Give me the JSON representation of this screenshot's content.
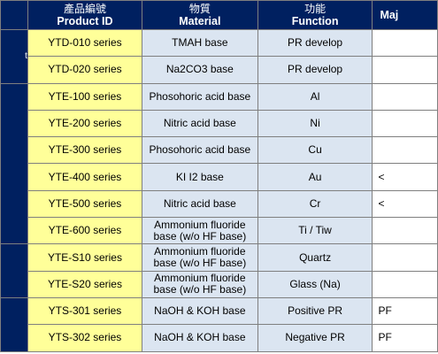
{
  "header": {
    "product_id": {
      "cn": "產品編號",
      "en": "Product ID"
    },
    "material": {
      "cn": "物質",
      "en": "Material"
    },
    "function": {
      "cn": "功能",
      "en": "Function"
    },
    "major": {
      "cn": "",
      "en": "Maj"
    }
  },
  "group_stub": "t",
  "rows": [
    {
      "product": "YTD-010 series",
      "material": "TMAH base",
      "function": "PR develop",
      "major": ""
    },
    {
      "product": "YTD-020 series",
      "material": "Na2CO3 base",
      "function": "PR develop",
      "major": ""
    },
    {
      "product": "YTE-100 series",
      "material": "Phosohoric acid base",
      "function": "Al",
      "major": ""
    },
    {
      "product": "YTE-200 series",
      "material": "Nitric acid base",
      "function": "Ni",
      "major": ""
    },
    {
      "product": "YTE-300 series",
      "material": "Phosohoric acid base",
      "function": "Cu",
      "major": ""
    },
    {
      "product": "YTE-400 series",
      "material": "KI I2 base",
      "function": "Au",
      "major": "<"
    },
    {
      "product": "YTE-500 series",
      "material": "Nitric acid base",
      "function": "Cr",
      "major": "<"
    },
    {
      "product": "YTE-600 series",
      "material": "Ammonium fluoride base (w/o HF base)",
      "function": "Ti / Tiw",
      "major": ""
    },
    {
      "product": "YTE-S10 series",
      "material": "Ammonium fluoride base (w/o HF base)",
      "function": "Quartz",
      "major": ""
    },
    {
      "product": "YTE-S20 series",
      "material": "Ammonium fluoride base (w/o HF base)",
      "function": "Glass (Na)",
      "major": ""
    },
    {
      "product": "YTS-301 series",
      "material": "NaOH & KOH base",
      "function": "Positive PR",
      "major": "PF"
    },
    {
      "product": "YTS-302 series",
      "material": "NaOH & KOH base",
      "function": "Negative PR",
      "major": "PF"
    }
  ],
  "colors": {
    "header_bg": "#002060",
    "product_bg": "#ffff99",
    "material_bg": "#dbe5f1"
  }
}
